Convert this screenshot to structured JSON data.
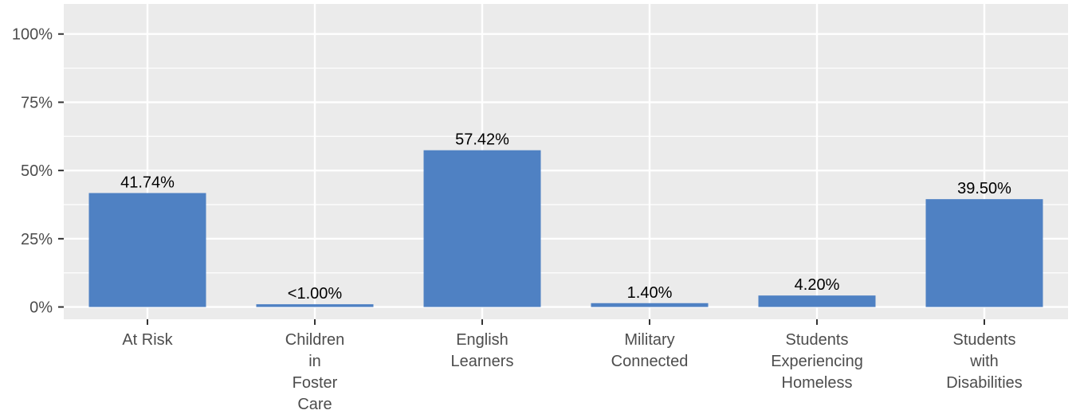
{
  "chart_data": {
    "type": "bar",
    "categories": [
      [
        "At Risk"
      ],
      [
        "Children",
        "in",
        "Foster",
        "Care"
      ],
      [
        "English",
        "Learners"
      ],
      [
        "Military",
        "Connected"
      ],
      [
        "Students",
        "Experiencing",
        "Homeless"
      ],
      [
        "Students",
        "with",
        "Disabilities"
      ]
    ],
    "values": [
      41.74,
      1.0,
      57.42,
      1.4,
      4.2,
      39.5
    ],
    "data_labels": [
      "41.74%",
      "<1.00%",
      "57.42%",
      "1.40%",
      "4.20%",
      "39.50%"
    ],
    "yticks": [
      0,
      25,
      50,
      75,
      100
    ],
    "ytick_labels": [
      "0%",
      "25%",
      "50%",
      "75%",
      "100%"
    ],
    "ylim": [
      -4.5,
      111
    ],
    "grid": true,
    "bar_color": "#4f81c3",
    "panel_color": "#ebebeb",
    "grid_color": "#ffffff"
  }
}
